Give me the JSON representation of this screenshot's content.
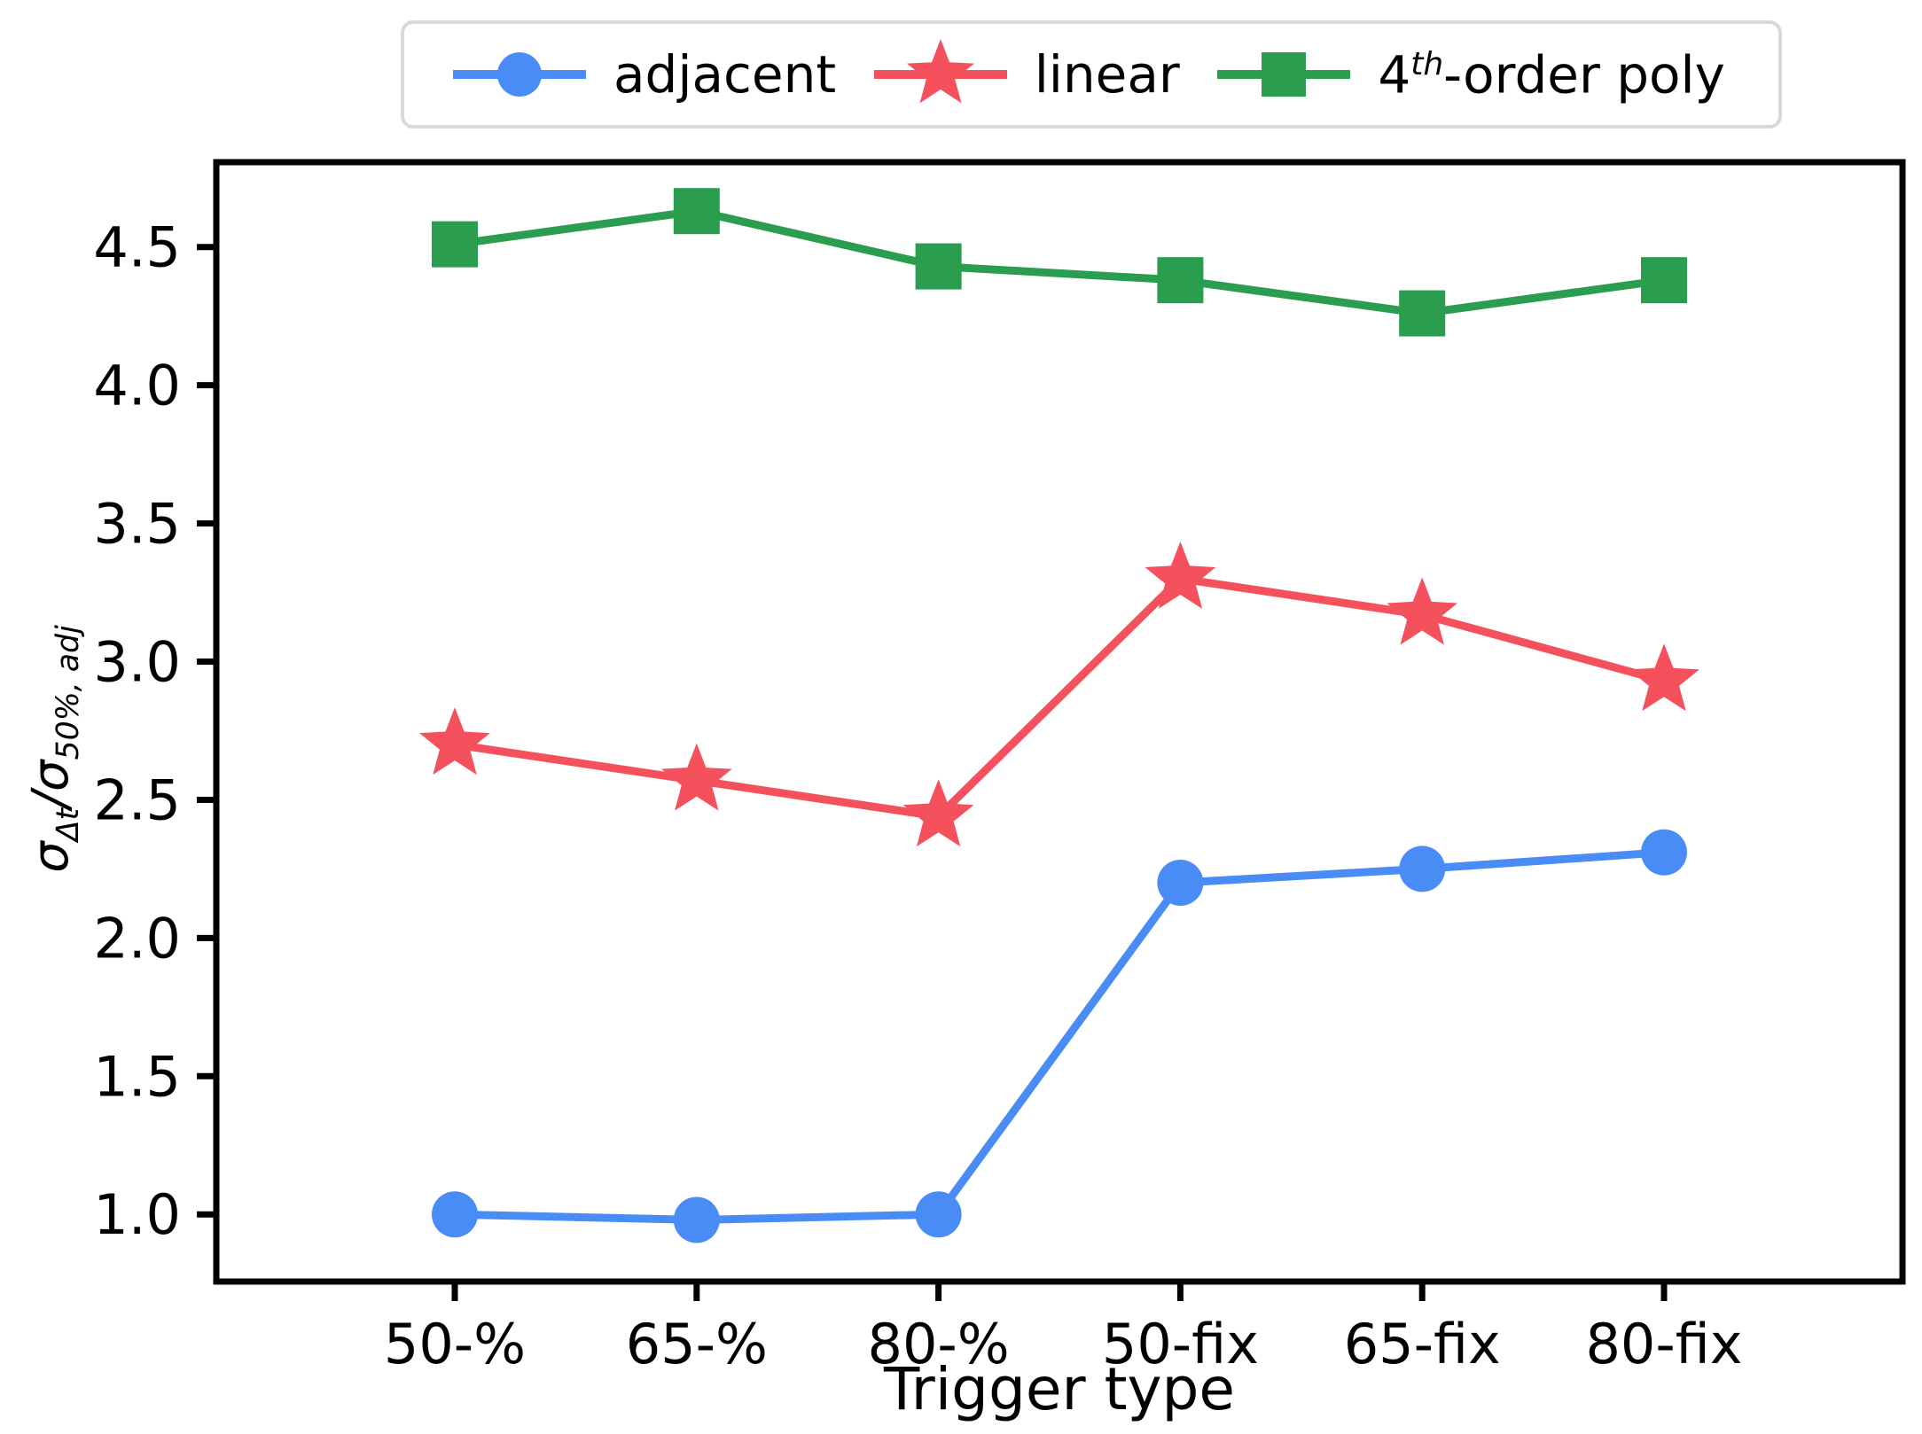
{
  "figure": {
    "background": "#ffffff",
    "text_color": "#000000",
    "spine_color": "#000000",
    "legend_border_color": "#d9d9d9"
  },
  "legend": {
    "items": [
      {
        "pre": "adjacent",
        "marker": "circle",
        "color": "#4a8cf5"
      },
      {
        "pre": "linear",
        "marker": "star",
        "color": "#f4515c"
      },
      {
        "pre": "4",
        "sup": "th",
        "post": "-order poly",
        "marker": "square",
        "color": "#2a9d4f"
      }
    ]
  },
  "ylabel_parts": {
    "numerator_base": "σ",
    "numerator_sub": "Δt",
    "divider": "/",
    "denominator_base": "σ",
    "denominator_sub": "50%, adj"
  },
  "chart_data": {
    "type": "line",
    "title": "",
    "xlabel": "Trigger type",
    "ylabel": "sigma_dt / sigma_50%,adj",
    "categories": [
      "50-%",
      "65-%",
      "80-%",
      "50-fix",
      "65-fix",
      "80-fix"
    ],
    "y_ticks": [
      1.0,
      1.5,
      2.0,
      2.5,
      3.0,
      3.5,
      4.0,
      4.5
    ],
    "ylim": [
      0.757,
      4.807
    ],
    "grid": false,
    "legend_position": "top-center-outside",
    "series": [
      {
        "name": "adjacent",
        "marker": "circle",
        "color": "#4a8cf5",
        "values": [
          1.0,
          0.98,
          1.0,
          2.2,
          2.25,
          2.31
        ]
      },
      {
        "name": "linear",
        "marker": "star",
        "color": "#f4515c",
        "values": [
          2.7,
          2.57,
          2.44,
          3.3,
          3.17,
          2.93
        ]
      },
      {
        "name": "4th-order poly",
        "marker": "square",
        "color": "#2a9d4f",
        "values": [
          4.51,
          4.63,
          4.43,
          4.38,
          4.26,
          4.38
        ]
      }
    ]
  }
}
